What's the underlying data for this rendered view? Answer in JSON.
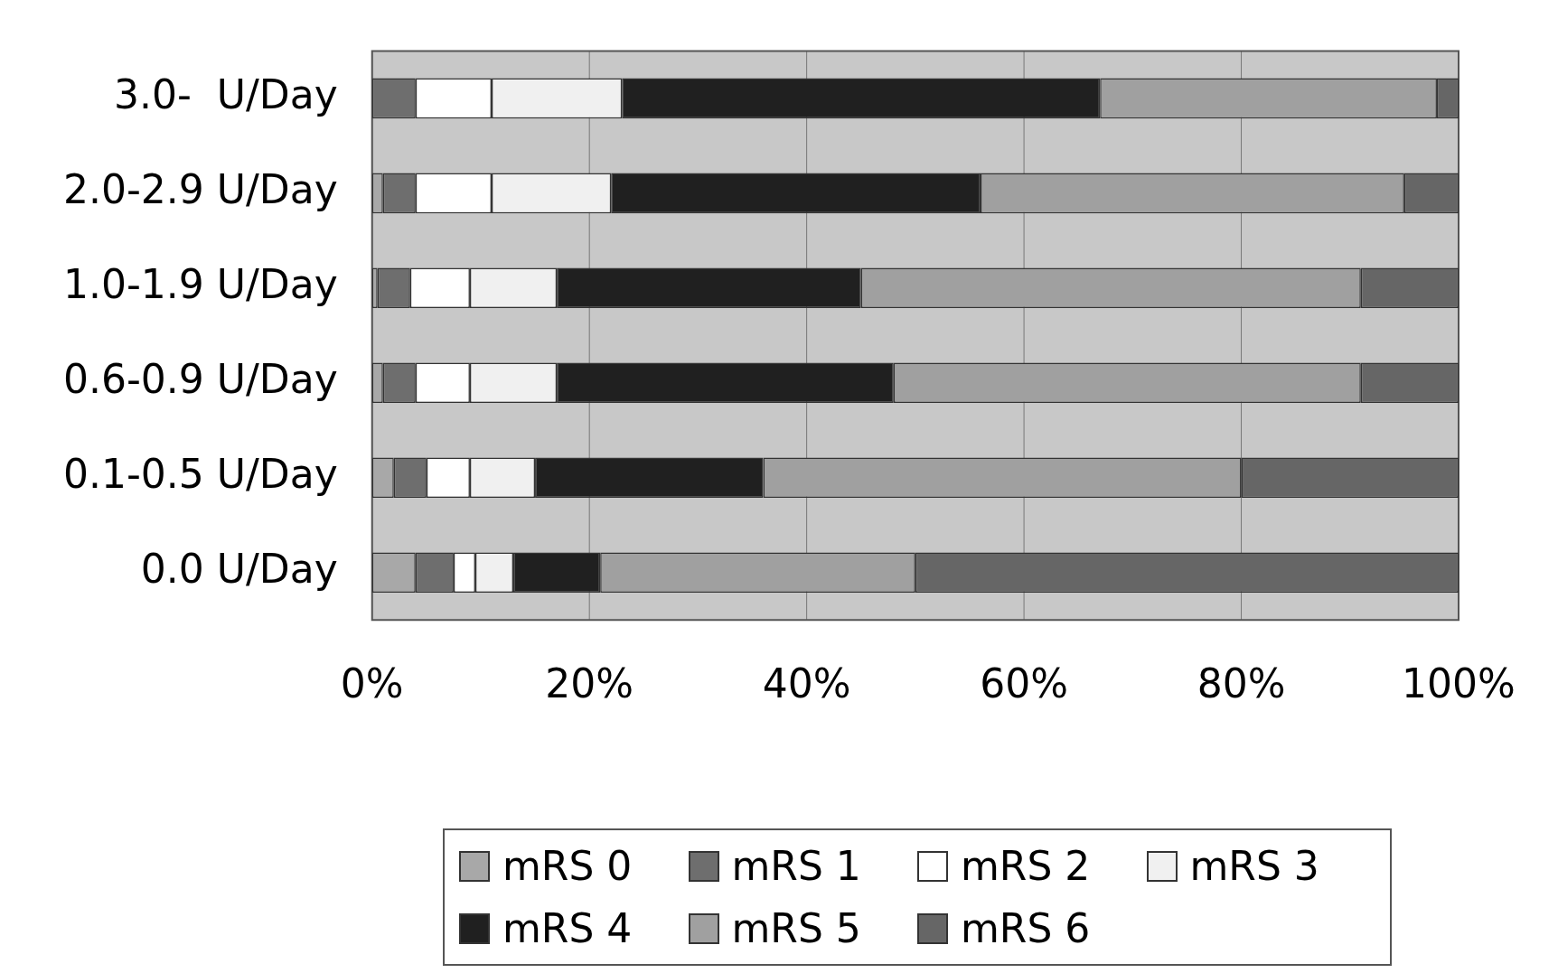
{
  "chart_data": {
    "type": "bar",
    "orientation": "horizontal",
    "stacked": true,
    "categories": [
      "3.0-  U/Day",
      "2.0-2.9 U/Day",
      "1.0-1.9 U/Day",
      "0.6-0.9 U/Day",
      "0.1-0.5 U/Day",
      "0.0 U/Day"
    ],
    "series": [
      {
        "name": "mRS 0",
        "color": "#a8a8a8",
        "values": [
          0,
          1,
          0.5,
          1,
          2,
          4
        ]
      },
      {
        "name": "mRS 1",
        "color": "#6e6e6e",
        "values": [
          4,
          3,
          3,
          3,
          3,
          3.5
        ]
      },
      {
        "name": "mRS 2",
        "color": "#ffffff",
        "values": [
          7,
          7,
          5.5,
          5,
          4,
          2
        ]
      },
      {
        "name": "mRS 3",
        "color": "#f0f0f0",
        "values": [
          12,
          11,
          8,
          8,
          6,
          3.5
        ]
      },
      {
        "name": "mRS 4",
        "color": "#202020",
        "values": [
          44,
          34,
          28,
          31,
          21,
          8
        ]
      },
      {
        "name": "mRS 5",
        "color": "#a0a0a0",
        "values": [
          31,
          39,
          46,
          43,
          44,
          29
        ]
      },
      {
        "name": "mRS 6",
        "color": "#666666",
        "values": [
          2,
          5,
          9,
          9,
          20,
          50
        ]
      }
    ],
    "xlim": [
      0,
      100
    ],
    "xticks": [
      {
        "value": 0,
        "label": "0%"
      },
      {
        "value": 20,
        "label": "20%"
      },
      {
        "value": 40,
        "label": "40%"
      },
      {
        "value": 60,
        "label": "60%"
      },
      {
        "value": 80,
        "label": "80%"
      },
      {
        "value": 100,
        "label": "100%"
      }
    ],
    "grid": "x",
    "legend": "bottom"
  }
}
